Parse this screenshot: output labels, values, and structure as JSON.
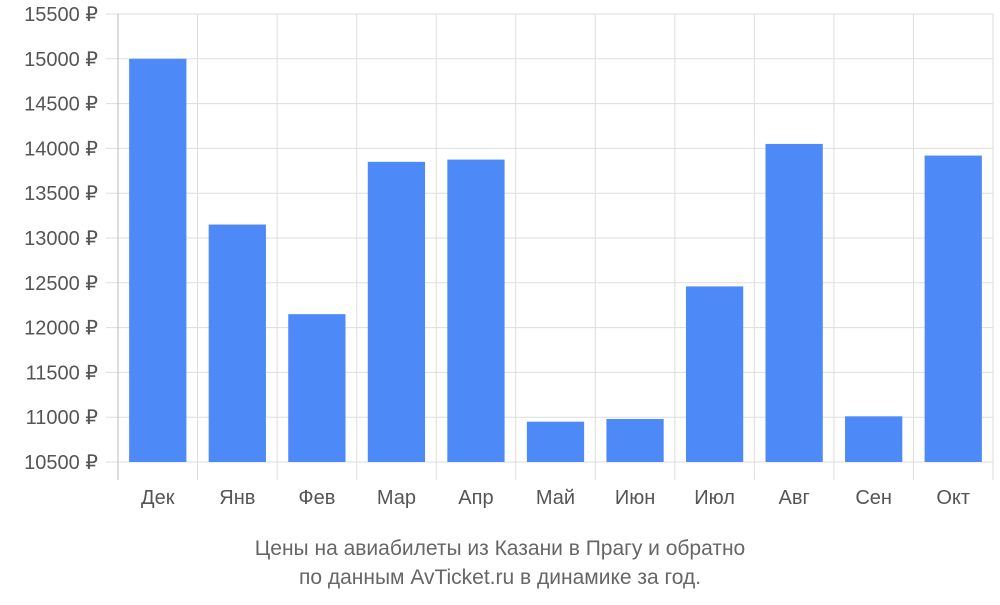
{
  "chart_data": {
    "type": "bar",
    "categories": [
      "Дек",
      "Янв",
      "Фев",
      "Мар",
      "Апр",
      "Май",
      "Июн",
      "Июл",
      "Авг",
      "Сен",
      "Окт"
    ],
    "values": [
      15000,
      13150,
      12150,
      13850,
      13875,
      10950,
      10980,
      12460,
      14050,
      11010,
      13920
    ],
    "y_ticks": [
      "10500 ₽",
      "11000 ₽",
      "11500 ₽",
      "12000 ₽",
      "12500 ₽",
      "13000 ₽",
      "13500 ₽",
      "14000 ₽",
      "14500 ₽",
      "15000 ₽",
      "15500 ₽"
    ],
    "ylim": [
      10500,
      15500
    ],
    "grid": true,
    "legend": "none",
    "colors": {
      "bar": "#4d8af8",
      "grid": "#dddddd",
      "text": "#555555"
    },
    "caption_line1": "Цены на авиабилеты из Казани в Прагу и обратно",
    "caption_line2": "по данным AvTicket.ru в динамике за год."
  }
}
